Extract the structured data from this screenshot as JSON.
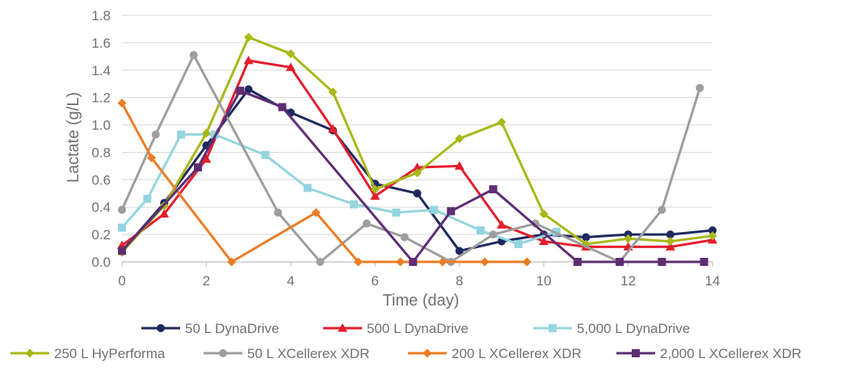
{
  "chart_data": {
    "type": "line",
    "title": "",
    "xlabel": "Time (day)",
    "ylabel": "Lactate (g/L)",
    "xlim": [
      0,
      14
    ],
    "ylim": [
      0,
      1.8
    ],
    "x_ticks": [
      0,
      2,
      4,
      6,
      8,
      10,
      12,
      14
    ],
    "y_ticks": [
      0,
      0.2,
      0.4,
      0.6,
      0.8,
      1.0,
      1.2,
      1.4,
      1.6,
      1.8
    ],
    "x_tick_labels": [
      "0",
      "2",
      "4",
      "6",
      "8",
      "10",
      "12",
      "14"
    ],
    "y_tick_labels": [
      "0.0",
      "0.2",
      "0.4",
      "0.6",
      "0.8",
      "1.0",
      "1.2",
      "1.4",
      "1.6",
      "1.8"
    ],
    "grid": "horizontal",
    "legend_position": "bottom",
    "series": [
      {
        "name": "50 L DynaDrive",
        "color": "#1e2a5e",
        "marker": "circle",
        "x": [
          0,
          1,
          2,
          3,
          4,
          5,
          6,
          7,
          8,
          9,
          10,
          11,
          12,
          13,
          14
        ],
        "y": [
          0.08,
          0.43,
          0.85,
          1.26,
          1.09,
          0.96,
          0.57,
          0.5,
          0.08,
          0.15,
          0.2,
          0.18,
          0.2,
          0.2,
          0.23
        ]
      },
      {
        "name": "500 L DynaDrive",
        "color": "#e31e2d",
        "marker": "triangle",
        "x": [
          0,
          1,
          2,
          3,
          4,
          5,
          6,
          7,
          8,
          9,
          10,
          11,
          12,
          13,
          14
        ],
        "y": [
          0.12,
          0.35,
          0.75,
          1.47,
          1.42,
          0.97,
          0.48,
          0.69,
          0.7,
          0.27,
          0.15,
          0.11,
          0.11,
          0.11,
          0.16
        ]
      },
      {
        "name": "5,000 L DynaDrive",
        "color": "#94d5df",
        "marker": "square",
        "x": [
          0,
          0.6,
          1.4,
          2.2,
          3.4,
          4.4,
          5.5,
          6.5,
          7.4,
          8.5,
          9.4,
          10.3
        ],
        "y": [
          0.25,
          0.46,
          0.93,
          0.93,
          0.78,
          0.54,
          0.42,
          0.36,
          0.38,
          0.23,
          0.13,
          0.22
        ]
      },
      {
        "name": "250 L HyPerforma",
        "color": "#a8b816",
        "marker": "diamond",
        "x": [
          0,
          1,
          2,
          3,
          4,
          5,
          6,
          7,
          8,
          9,
          10,
          11,
          12,
          13,
          14
        ],
        "y": [
          0.07,
          0.41,
          0.94,
          1.64,
          1.52,
          1.24,
          0.53,
          0.65,
          0.9,
          1.02,
          0.35,
          0.13,
          0.17,
          0.15,
          0.19
        ]
      },
      {
        "name": "50 L XCellerex XDR",
        "color": "#9e9e9e",
        "marker": "circle",
        "x": [
          0,
          0.8,
          1.7,
          3.7,
          4.7,
          5.8,
          6.7,
          7.8,
          8.8,
          9.8,
          11.8,
          12.8,
          13.7
        ],
        "y": [
          0.38,
          0.93,
          1.51,
          0.36,
          0.0,
          0.28,
          0.18,
          0.0,
          0.2,
          0.28,
          0.0,
          0.38,
          1.27
        ]
      },
      {
        "name": "200 L XCellerex XDR",
        "color": "#ec7c24",
        "marker": "diamond",
        "x": [
          0,
          0.7,
          2.6,
          4.6,
          5.6,
          6.6,
          7.6,
          8.6,
          9.6
        ],
        "y": [
          1.16,
          0.76,
          0.0,
          0.36,
          0.0,
          0.0,
          0.0,
          0.0,
          0.0
        ]
      },
      {
        "name": "2,000 L XCellerex XDR",
        "color": "#5e2d74",
        "marker": "square",
        "x": [
          0,
          1.8,
          2.8,
          3.8,
          6.9,
          7.8,
          8.8,
          10.8,
          11.8,
          12.8,
          13.8
        ],
        "y": [
          0.08,
          0.69,
          1.25,
          1.13,
          0.0,
          0.37,
          0.53,
          0.0,
          0.0,
          0.0,
          0.0
        ]
      }
    ]
  }
}
